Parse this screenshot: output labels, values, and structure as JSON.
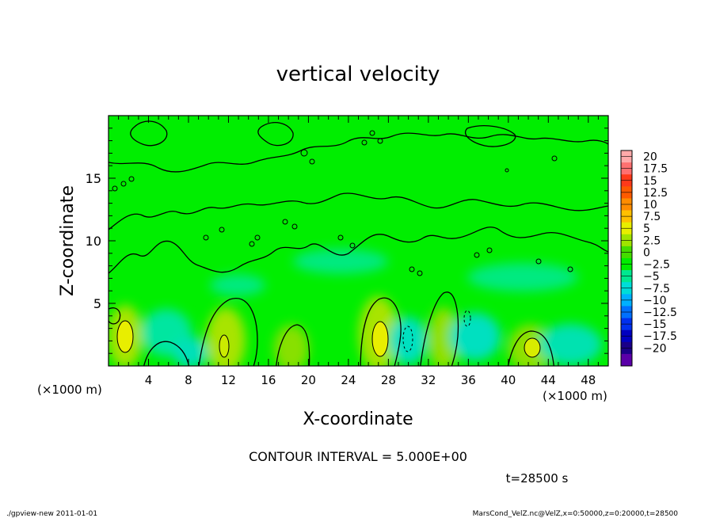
{
  "chart_data": {
    "type": "heatmap",
    "title": "vertical velocity",
    "xlabel": "X-coordinate",
    "ylabel": "Z-coordinate",
    "x_unit_left": "(×1000 m)",
    "x_unit_right": "(×1000 m)",
    "xlim": [
      0,
      50
    ],
    "ylim": [
      0,
      20
    ],
    "x_ticks": [
      "4",
      "8",
      "12",
      "16",
      "20",
      "24",
      "28",
      "32",
      "36",
      "40",
      "44",
      "48"
    ],
    "y_ticks": [
      "5",
      "10",
      "15"
    ],
    "colorbar": {
      "labels": [
        "20",
        "17.5",
        "15",
        "12.5",
        "10",
        "7.5",
        "5",
        "2.5",
        "0",
        "−2.5",
        "−5",
        "−7.5",
        "−10",
        "−12.5",
        "−15",
        "−17.5",
        "−20"
      ],
      "colors": [
        "#ffaaaa",
        "#ff7070",
        "#ff3a1a",
        "#ff5a00",
        "#ff8c00",
        "#ffc000",
        "#e8ee00",
        "#9fe400",
        "#44dd00",
        "#00ee00",
        "#00e890",
        "#00ddd8",
        "#00b0ff",
        "#0070ff",
        "#0030ee",
        "#0000c0",
        "#1a0088",
        "#5a00a8"
      ]
    },
    "contour_interval": "CONTOUR INTERVAL = 5.000E+00",
    "time": "t=28500 s",
    "footer_left": "./gpview-new 2011-01-01",
    "footer_right": "MarsCond_VelZ.nc@VelZ,x=0:50000,z=0:20000,t=28500",
    "colors": {
      "background_field": "#00ee00",
      "contour": "#000000"
    }
  }
}
